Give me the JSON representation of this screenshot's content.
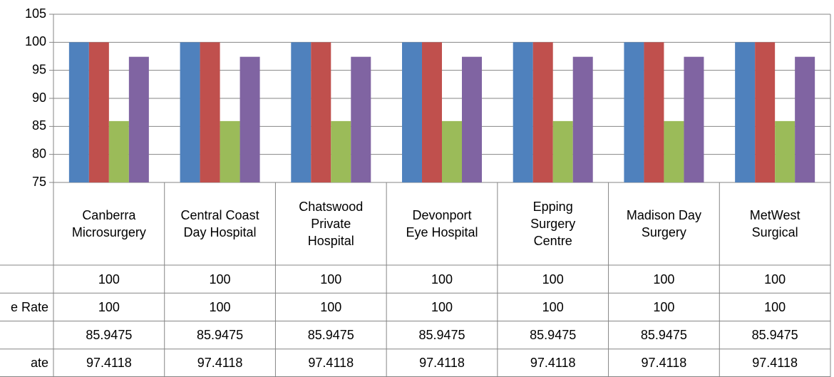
{
  "chart_data": {
    "type": "bar",
    "categories": [
      "Canberra\nMicrosurgery",
      "Central Coast\nDay Hospital",
      "Chatswood\nPrivate\nHospital",
      "Devonport\nEye Hospital",
      "Epping\nSurgery\nCentre",
      "Madison Day\nSurgery",
      "MetWest\nSurgical"
    ],
    "series": [
      {
        "color": "#4f81bd",
        "values": [
          100,
          100,
          100,
          100,
          100,
          100,
          100
        ]
      },
      {
        "name": "e Rate",
        "color": "#c0504d",
        "values": [
          100,
          100,
          100,
          100,
          100,
          100,
          100
        ]
      },
      {
        "color": "#9bbb59",
        "values": [
          85.9475,
          85.9475,
          85.9475,
          85.9475,
          85.9475,
          85.9475,
          85.9475
        ]
      },
      {
        "name": "ate",
        "color": "#8064a2",
        "values": [
          97.4118,
          97.4118,
          97.4118,
          97.4118,
          97.4118,
          97.4118,
          97.4118
        ]
      }
    ],
    "ylim": [
      75,
      105
    ],
    "yticks": [
      75,
      80,
      85,
      90,
      95,
      100,
      105
    ],
    "grid": true,
    "data_table": true
  }
}
